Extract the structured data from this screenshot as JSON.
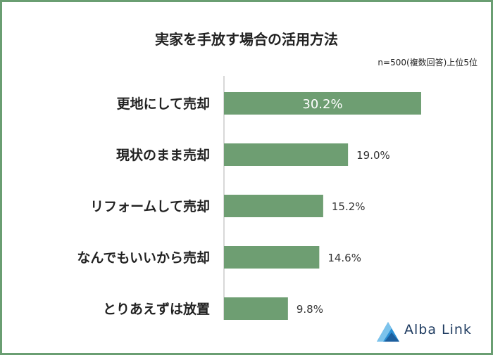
{
  "header": {
    "title": "実家を手放す場合の活用方法",
    "note": "n=500(複数回答)上位5位"
  },
  "brand": {
    "name": "Alba Link",
    "logo_icon": "triangle-mountain-logo-icon",
    "text_color": "#1d3a5f",
    "icon_color": "#2a8fd4"
  },
  "colors": {
    "border": "#6a9e72",
    "bar": "#6e9e72",
    "axis": "#cccccc"
  },
  "chart_data": {
    "type": "bar",
    "orientation": "horizontal",
    "title": "実家を手放す場合の活用方法",
    "subtitle": "n=500(複数回答)上位5位",
    "categories": [
      "更地にして売却",
      "現状のまま売却",
      "リフォームして売却",
      "なんでもいいから売却",
      "とりあえずは放置"
    ],
    "values": [
      30.2,
      19.0,
      15.2,
      14.6,
      9.8
    ],
    "value_labels": [
      "30.2%",
      "19.0%",
      "15.2%",
      "14.6%",
      "9.8%"
    ],
    "unit": "%",
    "grid": false,
    "legend": "none"
  }
}
